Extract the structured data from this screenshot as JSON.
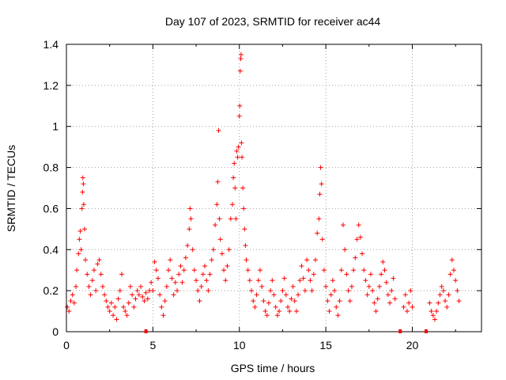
{
  "chart_data": {
    "type": "scatter",
    "title": "Day 107 of 2023, SRMTID for receiver ac44",
    "xlabel": "GPS time / hours",
    "ylabel": "SRMTID / TECUs",
    "xlim": [
      0,
      24
    ],
    "ylim": [
      0,
      1.4
    ],
    "xticks": [
      0,
      5,
      10,
      15,
      20
    ],
    "yticks": [
      0,
      0.2,
      0.4,
      0.6,
      0.8,
      1,
      1.2,
      1.4
    ],
    "xtick_labels": [
      "0",
      "5",
      "10",
      "15",
      "20"
    ],
    "ytick_labels": [
      "0",
      "0.2",
      "0.4",
      "0.6",
      "0.8",
      "1",
      "1.2",
      "1.4"
    ],
    "grid": true,
    "marker": "+",
    "color": "#ff0000",
    "gap_markers_x": [
      4.6,
      19.3,
      20.8
    ],
    "series": [
      {
        "name": "SRMTID",
        "points": [
          [
            0.05,
            0.12
          ],
          [
            0.15,
            0.1
          ],
          [
            0.25,
            0.15
          ],
          [
            0.35,
            0.18
          ],
          [
            0.45,
            0.14
          ],
          [
            0.55,
            0.22
          ],
          [
            0.6,
            0.3
          ],
          [
            0.7,
            0.38
          ],
          [
            0.75,
            0.45
          ],
          [
            0.8,
            0.49
          ],
          [
            0.85,
            0.4
          ],
          [
            0.9,
            0.6
          ],
          [
            0.93,
            0.68
          ],
          [
            0.95,
            0.75
          ],
          [
            0.98,
            0.72
          ],
          [
            1.0,
            0.62
          ],
          [
            1.05,
            0.5
          ],
          [
            1.1,
            0.35
          ],
          [
            1.2,
            0.28
          ],
          [
            1.3,
            0.22
          ],
          [
            1.4,
            0.18
          ],
          [
            1.5,
            0.25
          ],
          [
            1.6,
            0.3
          ],
          [
            1.7,
            0.2
          ],
          [
            1.8,
            0.33
          ],
          [
            1.9,
            0.35
          ],
          [
            2.0,
            0.28
          ],
          [
            2.1,
            0.22
          ],
          [
            2.2,
            0.18
          ],
          [
            2.3,
            0.15
          ],
          [
            2.4,
            0.12
          ],
          [
            2.5,
            0.1
          ],
          [
            2.6,
            0.14
          ],
          [
            2.7,
            0.08
          ],
          [
            2.8,
            0.12
          ],
          [
            2.9,
            0.06
          ],
          [
            3.0,
            0.16
          ],
          [
            3.1,
            0.2
          ],
          [
            3.2,
            0.28
          ],
          [
            3.3,
            0.12
          ],
          [
            3.4,
            0.1
          ],
          [
            3.5,
            0.08
          ],
          [
            3.6,
            0.14
          ],
          [
            3.7,
            0.22
          ],
          [
            3.8,
            0.18
          ],
          [
            3.9,
            0.12
          ],
          [
            4.0,
            0.16
          ],
          [
            4.1,
            0.2
          ],
          [
            4.2,
            0.18
          ],
          [
            4.3,
            0.22
          ],
          [
            4.4,
            0.17
          ],
          [
            4.5,
            0.15
          ],
          [
            4.6,
            0.19
          ],
          [
            4.7,
            0.16
          ],
          [
            4.8,
            0.2
          ],
          [
            4.9,
            0.24
          ],
          [
            5.0,
            0.2
          ],
          [
            5.1,
            0.34
          ],
          [
            5.2,
            0.3
          ],
          [
            5.3,
            0.26
          ],
          [
            5.4,
            0.18
          ],
          [
            5.5,
            0.12
          ],
          [
            5.6,
            0.08
          ],
          [
            5.7,
            0.15
          ],
          [
            5.8,
            0.22
          ],
          [
            5.9,
            0.3
          ],
          [
            6.0,
            0.35
          ],
          [
            6.1,
            0.26
          ],
          [
            6.2,
            0.18
          ],
          [
            6.3,
            0.24
          ],
          [
            6.4,
            0.2
          ],
          [
            6.5,
            0.28
          ],
          [
            6.6,
            0.32
          ],
          [
            6.7,
            0.24
          ],
          [
            6.8,
            0.3
          ],
          [
            6.9,
            0.36
          ],
          [
            7.0,
            0.42
          ],
          [
            7.1,
            0.5
          ],
          [
            7.15,
            0.6
          ],
          [
            7.2,
            0.55
          ],
          [
            7.3,
            0.4
          ],
          [
            7.4,
            0.3
          ],
          [
            7.5,
            0.25
          ],
          [
            7.6,
            0.2
          ],
          [
            7.7,
            0.15
          ],
          [
            7.8,
            0.22
          ],
          [
            7.9,
            0.28
          ],
          [
            8.0,
            0.32
          ],
          [
            8.1,
            0.25
          ],
          [
            8.2,
            0.2
          ],
          [
            8.3,
            0.28
          ],
          [
            8.4,
            0.35
          ],
          [
            8.5,
            0.4
          ],
          [
            8.6,
            0.52
          ],
          [
            8.7,
            0.62
          ],
          [
            8.75,
            0.73
          ],
          [
            8.8,
            0.98
          ],
          [
            8.85,
            0.55
          ],
          [
            8.9,
            0.45
          ],
          [
            9.0,
            0.38
          ],
          [
            9.1,
            0.3
          ],
          [
            9.2,
            0.25
          ],
          [
            9.3,
            0.32
          ],
          [
            9.4,
            0.4
          ],
          [
            9.5,
            0.55
          ],
          [
            9.6,
            0.62
          ],
          [
            9.65,
            0.75
          ],
          [
            9.7,
            0.82
          ],
          [
            9.75,
            0.7
          ],
          [
            9.8,
            0.55
          ],
          [
            9.85,
            0.88
          ],
          [
            9.9,
            0.85
          ],
          [
            9.95,
            0.9
          ],
          [
            10.0,
            1.05
          ],
          [
            10.02,
            1.1
          ],
          [
            10.05,
            1.27
          ],
          [
            10.08,
            1.33
          ],
          [
            10.1,
            1.35
          ],
          [
            10.12,
            0.92
          ],
          [
            10.15,
            0.85
          ],
          [
            10.2,
            0.7
          ],
          [
            10.25,
            0.6
          ],
          [
            10.3,
            0.5
          ],
          [
            10.35,
            0.42
          ],
          [
            10.4,
            0.35
          ],
          [
            10.5,
            0.3
          ],
          [
            10.6,
            0.25
          ],
          [
            10.7,
            0.2
          ],
          [
            10.8,
            0.15
          ],
          [
            10.9,
            0.12
          ],
          [
            11.0,
            0.18
          ],
          [
            11.1,
            0.25
          ],
          [
            11.2,
            0.3
          ],
          [
            11.3,
            0.22
          ],
          [
            11.4,
            0.15
          ],
          [
            11.5,
            0.1
          ],
          [
            11.6,
            0.08
          ],
          [
            11.7,
            0.14
          ],
          [
            11.8,
            0.2
          ],
          [
            11.9,
            0.25
          ],
          [
            12.0,
            0.18
          ],
          [
            12.1,
            0.12
          ],
          [
            12.2,
            0.08
          ],
          [
            12.3,
            0.1
          ],
          [
            12.4,
            0.15
          ],
          [
            12.5,
            0.2
          ],
          [
            12.6,
            0.26
          ],
          [
            12.7,
            0.18
          ],
          [
            12.8,
            0.12
          ],
          [
            12.9,
            0.1
          ],
          [
            13.0,
            0.16
          ],
          [
            13.1,
            0.22
          ],
          [
            13.2,
            0.15
          ],
          [
            13.3,
            0.1
          ],
          [
            13.4,
            0.18
          ],
          [
            13.5,
            0.25
          ],
          [
            13.6,
            0.32
          ],
          [
            13.7,
            0.26
          ],
          [
            13.8,
            0.2
          ],
          [
            13.9,
            0.35
          ],
          [
            14.0,
            0.3
          ],
          [
            14.1,
            0.25
          ],
          [
            14.2,
            0.2
          ],
          [
            14.3,
            0.28
          ],
          [
            14.4,
            0.35
          ],
          [
            14.5,
            0.48
          ],
          [
            14.6,
            0.55
          ],
          [
            14.65,
            0.67
          ],
          [
            14.7,
            0.8
          ],
          [
            14.75,
            0.72
          ],
          [
            14.8,
            0.45
          ],
          [
            14.9,
            0.3
          ],
          [
            15.0,
            0.22
          ],
          [
            15.1,
            0.15
          ],
          [
            15.2,
            0.1
          ],
          [
            15.3,
            0.18
          ],
          [
            15.4,
            0.25
          ],
          [
            15.5,
            0.2
          ],
          [
            15.6,
            0.12
          ],
          [
            15.7,
            0.08
          ],
          [
            15.8,
            0.15
          ],
          [
            15.9,
            0.3
          ],
          [
            16.0,
            0.52
          ],
          [
            16.1,
            0.4
          ],
          [
            16.2,
            0.28
          ],
          [
            16.3,
            0.2
          ],
          [
            16.4,
            0.15
          ],
          [
            16.5,
            0.22
          ],
          [
            16.6,
            0.3
          ],
          [
            16.7,
            0.36
          ],
          [
            16.8,
            0.45
          ],
          [
            16.9,
            0.52
          ],
          [
            17.0,
            0.46
          ],
          [
            17.1,
            0.38
          ],
          [
            17.2,
            0.3
          ],
          [
            17.3,
            0.25
          ],
          [
            17.4,
            0.18
          ],
          [
            17.5,
            0.22
          ],
          [
            17.6,
            0.28
          ],
          [
            17.7,
            0.2
          ],
          [
            17.8,
            0.14
          ],
          [
            17.9,
            0.1
          ],
          [
            18.0,
            0.16
          ],
          [
            18.1,
            0.22
          ],
          [
            18.2,
            0.28
          ],
          [
            18.3,
            0.34
          ],
          [
            18.4,
            0.3
          ],
          [
            18.5,
            0.24
          ],
          [
            18.6,
            0.18
          ],
          [
            18.7,
            0.14
          ],
          [
            18.8,
            0.2
          ],
          [
            18.9,
            0.26
          ],
          [
            19.0,
            0.16
          ],
          [
            19.5,
            0.12
          ],
          [
            19.6,
            0.18
          ],
          [
            19.7,
            0.1
          ],
          [
            19.8,
            0.14
          ],
          [
            19.9,
            0.2
          ],
          [
            20.0,
            0.12
          ],
          [
            21.0,
            0.14
          ],
          [
            21.1,
            0.1
          ],
          [
            21.2,
            0.08
          ],
          [
            21.3,
            0.06
          ],
          [
            21.4,
            0.1
          ],
          [
            21.5,
            0.14
          ],
          [
            21.6,
            0.18
          ],
          [
            21.7,
            0.22
          ],
          [
            21.8,
            0.2
          ],
          [
            21.9,
            0.15
          ],
          [
            22.0,
            0.12
          ],
          [
            22.1,
            0.18
          ],
          [
            22.2,
            0.28
          ],
          [
            22.3,
            0.35
          ],
          [
            22.4,
            0.3
          ],
          [
            22.5,
            0.25
          ],
          [
            22.6,
            0.2
          ],
          [
            22.7,
            0.15
          ]
        ]
      }
    ]
  }
}
